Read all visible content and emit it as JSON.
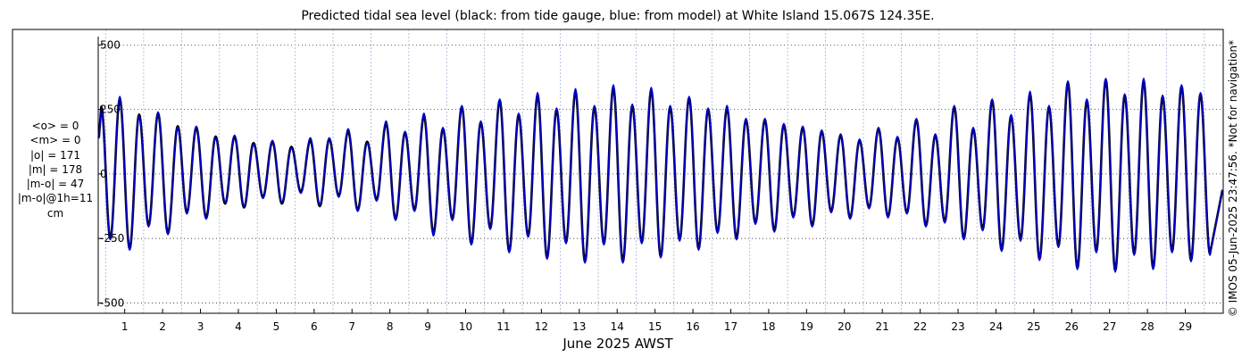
{
  "title": "Predicted tidal sea level (black: from tide gauge, blue: from model) at White Island 15.067S 124.35E.",
  "stats": [
    "<o> = 0",
    "<m> = 0",
    "|o| = 171",
    "|m| = 178",
    "|m-o| = 47",
    "|m-o|@1h=11",
    "cm"
  ],
  "credit": "© IMOS 05-Jun-2025 23:47:56. *Not for navigation*",
  "chart_data": {
    "type": "line",
    "title": "Predicted tidal sea level (black: from tide gauge, blue: from model) at White Island 15.067S 124.35E.",
    "xlabel": "June 2025 AWST",
    "ylabel": "",
    "xlim": [
      0.3,
      30.0
    ],
    "ylim": [
      -540,
      560
    ],
    "yticks": [
      500,
      250,
      0,
      -250,
      -500
    ],
    "xticks": [
      1,
      2,
      3,
      4,
      5,
      6,
      7,
      8,
      9,
      10,
      11,
      12,
      13,
      14,
      15,
      16,
      17,
      18,
      19,
      20,
      21,
      22,
      23,
      24,
      25,
      26,
      27,
      28,
      29
    ],
    "grid": "dotted",
    "series": [
      {
        "color": "#000000",
        "description": "from tide gauge",
        "highs": [
          [
            0.38,
            260
          ],
          [
            0.87,
            290
          ],
          [
            1.38,
            230
          ],
          [
            1.88,
            235
          ],
          [
            2.4,
            185
          ],
          [
            2.89,
            180
          ],
          [
            3.4,
            145
          ],
          [
            3.9,
            145
          ],
          [
            4.4,
            120
          ],
          [
            4.9,
            125
          ],
          [
            5.4,
            105
          ],
          [
            5.9,
            130
          ],
          [
            6.4,
            135
          ],
          [
            6.9,
            165
          ],
          [
            7.4,
            125
          ],
          [
            7.9,
            195
          ],
          [
            8.4,
            160
          ],
          [
            8.9,
            225
          ],
          [
            9.4,
            175
          ],
          [
            9.9,
            260
          ],
          [
            10.4,
            200
          ],
          [
            10.9,
            285
          ],
          [
            11.4,
            230
          ],
          [
            11.9,
            305
          ],
          [
            12.4,
            250
          ],
          [
            12.9,
            320
          ],
          [
            13.4,
            260
          ],
          [
            13.9,
            335
          ],
          [
            14.4,
            265
          ],
          [
            14.9,
            325
          ],
          [
            15.4,
            260
          ],
          [
            15.9,
            295
          ],
          [
            16.4,
            250
          ],
          [
            16.9,
            255
          ],
          [
            17.4,
            210
          ],
          [
            17.9,
            210
          ],
          [
            18.4,
            190
          ],
          [
            18.9,
            180
          ],
          [
            19.4,
            165
          ],
          [
            19.9,
            150
          ],
          [
            20.4,
            130
          ],
          [
            20.9,
            175
          ],
          [
            21.4,
            140
          ],
          [
            21.9,
            210
          ],
          [
            22.4,
            150
          ],
          [
            22.9,
            260
          ],
          [
            23.4,
            175
          ],
          [
            23.9,
            285
          ],
          [
            24.4,
            225
          ],
          [
            24.9,
            310
          ],
          [
            25.4,
            260
          ],
          [
            25.9,
            355
          ],
          [
            26.4,
            285
          ],
          [
            26.9,
            365
          ],
          [
            27.4,
            305
          ],
          [
            27.9,
            360
          ],
          [
            28.4,
            300
          ],
          [
            28.9,
            340
          ],
          [
            29.4,
            310
          ]
        ],
        "lows": [
          [
            0.62,
            -250
          ],
          [
            1.13,
            -290
          ],
          [
            1.63,
            -200
          ],
          [
            2.14,
            -230
          ],
          [
            2.64,
            -150
          ],
          [
            3.15,
            -170
          ],
          [
            3.65,
            -115
          ],
          [
            4.15,
            -130
          ],
          [
            4.65,
            -90
          ],
          [
            5.15,
            -115
          ],
          [
            5.65,
            -70
          ],
          [
            6.15,
            -125
          ],
          [
            6.65,
            -85
          ],
          [
            7.15,
            -140
          ],
          [
            7.65,
            -100
          ],
          [
            8.15,
            -175
          ],
          [
            8.65,
            -140
          ],
          [
            9.15,
            -230
          ],
          [
            9.65,
            -175
          ],
          [
            10.15,
            -270
          ],
          [
            10.65,
            -210
          ],
          [
            11.15,
            -300
          ],
          [
            11.65,
            -240
          ],
          [
            12.15,
            -325
          ],
          [
            12.65,
            -265
          ],
          [
            13.15,
            -340
          ],
          [
            13.65,
            -270
          ],
          [
            14.15,
            -340
          ],
          [
            14.65,
            -265
          ],
          [
            15.15,
            -320
          ],
          [
            15.65,
            -255
          ],
          [
            16.15,
            -290
          ],
          [
            16.65,
            -225
          ],
          [
            17.15,
            -250
          ],
          [
            17.65,
            -190
          ],
          [
            18.15,
            -220
          ],
          [
            18.65,
            -165
          ],
          [
            19.15,
            -200
          ],
          [
            19.65,
            -145
          ],
          [
            20.15,
            -170
          ],
          [
            20.65,
            -130
          ],
          [
            21.15,
            -165
          ],
          [
            21.65,
            -150
          ],
          [
            22.15,
            -200
          ],
          [
            22.65,
            -185
          ],
          [
            23.15,
            -250
          ],
          [
            23.65,
            -215
          ],
          [
            24.15,
            -295
          ],
          [
            24.65,
            -255
          ],
          [
            25.15,
            -330
          ],
          [
            25.65,
            -280
          ],
          [
            26.15,
            -365
          ],
          [
            26.65,
            -300
          ],
          [
            27.15,
            -375
          ],
          [
            27.65,
            -310
          ],
          [
            28.15,
            -365
          ],
          [
            28.65,
            -300
          ],
          [
            29.15,
            -335
          ],
          [
            29.65,
            -310
          ]
        ]
      },
      {
        "color": "#0000cc",
        "description": "from model",
        "highs": [
          [
            0.38,
            250
          ],
          [
            0.87,
            300
          ],
          [
            1.38,
            225
          ],
          [
            1.88,
            240
          ],
          [
            2.4,
            180
          ],
          [
            2.89,
            185
          ],
          [
            3.4,
            140
          ],
          [
            3.9,
            150
          ],
          [
            4.4,
            115
          ],
          [
            4.9,
            130
          ],
          [
            5.4,
            100
          ],
          [
            5.9,
            140
          ],
          [
            6.4,
            140
          ],
          [
            6.9,
            175
          ],
          [
            7.4,
            120
          ],
          [
            7.9,
            205
          ],
          [
            8.4,
            165
          ],
          [
            8.9,
            235
          ],
          [
            9.4,
            180
          ],
          [
            9.9,
            265
          ],
          [
            10.4,
            205
          ],
          [
            10.9,
            290
          ],
          [
            11.4,
            235
          ],
          [
            11.9,
            315
          ],
          [
            12.4,
            255
          ],
          [
            12.9,
            330
          ],
          [
            13.4,
            265
          ],
          [
            13.9,
            345
          ],
          [
            14.4,
            270
          ],
          [
            14.9,
            335
          ],
          [
            15.4,
            265
          ],
          [
            15.9,
            300
          ],
          [
            16.4,
            255
          ],
          [
            16.9,
            265
          ],
          [
            17.4,
            215
          ],
          [
            17.9,
            215
          ],
          [
            18.4,
            195
          ],
          [
            18.9,
            185
          ],
          [
            19.4,
            170
          ],
          [
            19.9,
            155
          ],
          [
            20.4,
            135
          ],
          [
            20.9,
            180
          ],
          [
            21.4,
            145
          ],
          [
            21.9,
            215
          ],
          [
            22.4,
            155
          ],
          [
            22.9,
            265
          ],
          [
            23.4,
            180
          ],
          [
            23.9,
            290
          ],
          [
            24.4,
            230
          ],
          [
            24.9,
            320
          ],
          [
            25.4,
            265
          ],
          [
            25.9,
            360
          ],
          [
            26.4,
            290
          ],
          [
            26.9,
            370
          ],
          [
            27.4,
            310
          ],
          [
            27.9,
            370
          ],
          [
            28.4,
            305
          ],
          [
            28.9,
            345
          ],
          [
            29.4,
            315
          ]
        ],
        "lows": [
          [
            0.62,
            -255
          ],
          [
            1.13,
            -295
          ],
          [
            1.63,
            -205
          ],
          [
            2.14,
            -235
          ],
          [
            2.64,
            -155
          ],
          [
            3.15,
            -175
          ],
          [
            3.65,
            -110
          ],
          [
            4.15,
            -125
          ],
          [
            4.65,
            -95
          ],
          [
            5.15,
            -110
          ],
          [
            5.65,
            -75
          ],
          [
            6.15,
            -120
          ],
          [
            6.65,
            -90
          ],
          [
            7.15,
            -145
          ],
          [
            7.65,
            -105
          ],
          [
            8.15,
            -180
          ],
          [
            8.65,
            -145
          ],
          [
            9.15,
            -240
          ],
          [
            9.65,
            -180
          ],
          [
            10.15,
            -275
          ],
          [
            10.65,
            -215
          ],
          [
            11.15,
            -305
          ],
          [
            11.65,
            -245
          ],
          [
            12.15,
            -330
          ],
          [
            12.65,
            -270
          ],
          [
            13.15,
            -345
          ],
          [
            13.65,
            -275
          ],
          [
            14.15,
            -345
          ],
          [
            14.65,
            -270
          ],
          [
            15.15,
            -325
          ],
          [
            15.65,
            -260
          ],
          [
            16.15,
            -295
          ],
          [
            16.65,
            -230
          ],
          [
            17.15,
            -255
          ],
          [
            17.65,
            -195
          ],
          [
            18.15,
            -225
          ],
          [
            18.65,
            -170
          ],
          [
            19.15,
            -205
          ],
          [
            19.65,
            -150
          ],
          [
            20.15,
            -175
          ],
          [
            20.65,
            -135
          ],
          [
            21.15,
            -170
          ],
          [
            21.65,
            -155
          ],
          [
            22.15,
            -205
          ],
          [
            22.65,
            -190
          ],
          [
            23.15,
            -255
          ],
          [
            23.65,
            -220
          ],
          [
            24.15,
            -300
          ],
          [
            24.65,
            -260
          ],
          [
            25.15,
            -335
          ],
          [
            25.65,
            -285
          ],
          [
            26.15,
            -370
          ],
          [
            26.65,
            -305
          ],
          [
            27.15,
            -380
          ],
          [
            27.65,
            -315
          ],
          [
            28.15,
            -370
          ],
          [
            28.65,
            -305
          ],
          [
            29.15,
            -340
          ],
          [
            29.65,
            -315
          ]
        ]
      }
    ]
  }
}
